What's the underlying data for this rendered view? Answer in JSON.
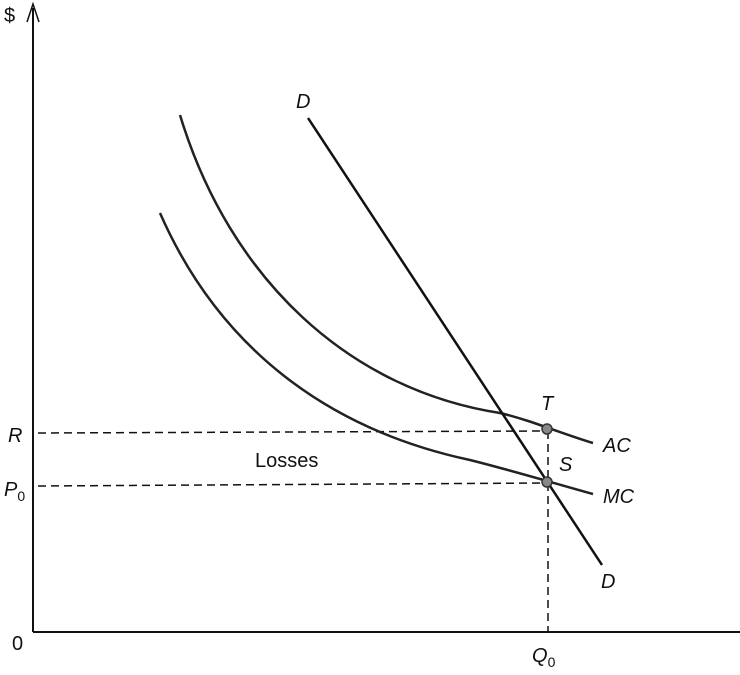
{
  "axes": {
    "y_label": "$",
    "origin_label": "0"
  },
  "curves": {
    "demand": {
      "label_top": "D",
      "label_bottom": "D"
    },
    "average_cost": {
      "label": "AC"
    },
    "marginal_cost": {
      "label": "MC"
    }
  },
  "points": {
    "T": "T",
    "S": "S"
  },
  "levels": {
    "R": "R",
    "P0": "P",
    "P0_sub": "0",
    "Q0": "Q",
    "Q0_sub": "0"
  },
  "region": {
    "losses": "Losses"
  },
  "colors": {
    "ink": "#111111",
    "point_fill": "#888888"
  }
}
